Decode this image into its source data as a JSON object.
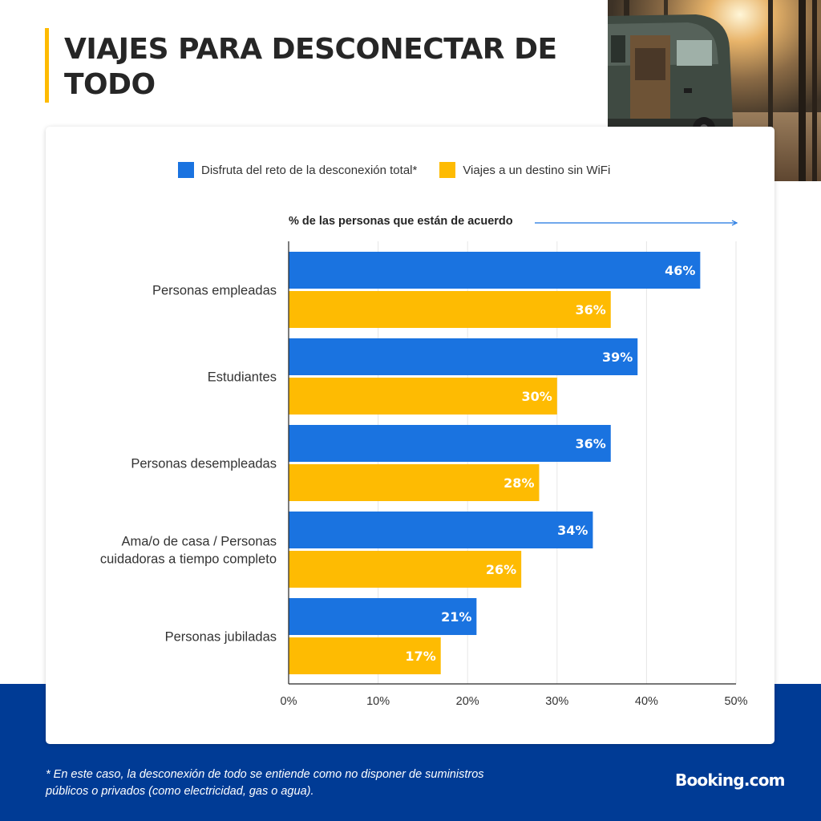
{
  "title": "VIAJES PARA DESCONECTAR DE TODO",
  "colors": {
    "blue": "#1a73e0",
    "yellow": "#febb02",
    "navy": "#003b95"
  },
  "chart_data": {
    "type": "bar",
    "orientation": "horizontal",
    "title": "",
    "xlabel": "% de las personas que están de acuerdo",
    "ylabel": "",
    "categories": [
      "Personas empleadas",
      "Estudiantes",
      "Personas desempleadas",
      "Ama/o de casa / Personas cuidadoras a tiempo completo",
      "Personas jubiladas"
    ],
    "category_lines": [
      [
        "Personas empleadas"
      ],
      [
        "Estudiantes"
      ],
      [
        "Personas desempleadas"
      ],
      [
        "Ama/o de casa / Personas",
        "cuidadoras a tiempo completo"
      ],
      [
        "Personas jubiladas"
      ]
    ],
    "series": [
      {
        "name": "Disfruta del reto de la desconexión total*",
        "color": "#1a73e0",
        "values": [
          46,
          39,
          36,
          34,
          21
        ],
        "labels": [
          "46%",
          "39%",
          "36%",
          "34%",
          "21%"
        ]
      },
      {
        "name": "Viajes a un destino sin WiFi",
        "color": "#febb02",
        "values": [
          36,
          30,
          28,
          26,
          17
        ],
        "labels": [
          "36%",
          "30%",
          "28%",
          "26%",
          "17%"
        ]
      }
    ],
    "xlim": [
      0,
      50
    ],
    "xticks": [
      0,
      10,
      20,
      30,
      40,
      50
    ],
    "xtick_labels": [
      "0%",
      "10%",
      "20%",
      "30%",
      "40%",
      "50%"
    ],
    "grid": true,
    "legend_position": "top"
  },
  "footnote": "*  En este caso, la desconexión de todo se entiende como no disponer de suministros públicos o privados (como electricidad, gas o agua).",
  "brand": "Booking.com"
}
